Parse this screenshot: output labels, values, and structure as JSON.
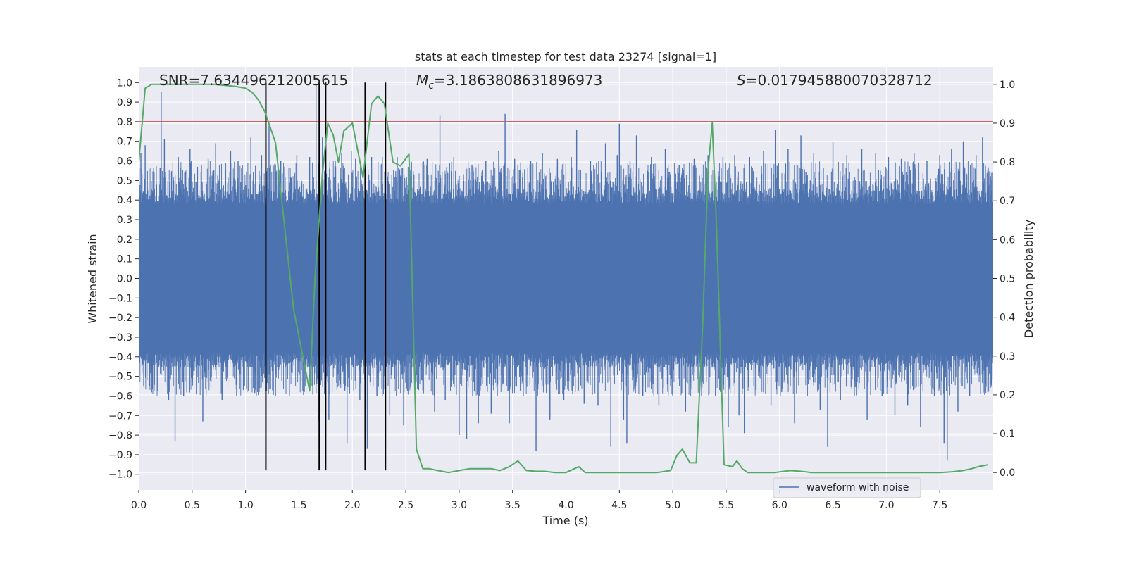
{
  "chart_data": {
    "type": "line",
    "title": "stats at each timestep for test data 23274 [signal=1]",
    "xlabel": "Time (s)",
    "ylabel_left": "Whitened strain",
    "ylabel_right": "Detection probability",
    "xlim": [
      0.0,
      8.0
    ],
    "ylim_left": [
      -1.08,
      1.08
    ],
    "ylim_right": [
      -0.045,
      1.045
    ],
    "x_ticks": [
      0.0,
      0.5,
      1.0,
      1.5,
      2.0,
      2.5,
      3.0,
      3.5,
      4.0,
      4.5,
      5.0,
      5.5,
      6.0,
      6.5,
      7.0,
      7.5
    ],
    "x_tick_labels": [
      "0.0",
      "0.5",
      "1.0",
      "1.5",
      "2.0",
      "2.5",
      "3.0",
      "3.5",
      "4.0",
      "4.5",
      "5.0",
      "5.5",
      "6.0",
      "6.5",
      "7.0",
      "7.5"
    ],
    "y_left_ticks": [
      -1.0,
      -0.9,
      -0.8,
      -0.7,
      -0.6,
      -0.5,
      -0.4,
      -0.3,
      -0.2,
      -0.1,
      0.0,
      0.1,
      0.2,
      0.3,
      0.4,
      0.5,
      0.6,
      0.7,
      0.8,
      0.9,
      1.0
    ],
    "y_left_tick_labels": [
      "−1.0",
      "−0.9",
      "−0.8",
      "−0.7",
      "−0.6",
      "−0.5",
      "−0.4",
      "−0.3",
      "−0.2",
      "−0.1",
      "0.0",
      "0.1",
      "0.2",
      "0.3",
      "0.4",
      "0.5",
      "0.6",
      "0.7",
      "0.8",
      "0.9",
      "1.0"
    ],
    "y_right_ticks": [
      0.0,
      0.1,
      0.2,
      0.3,
      0.4,
      0.5,
      0.6,
      0.7,
      0.8,
      0.9,
      1.0
    ],
    "y_right_tick_labels": [
      "0.0",
      "0.1",
      "0.2",
      "0.3",
      "0.4",
      "0.5",
      "0.6",
      "0.7",
      "0.8",
      "0.9",
      "1.0"
    ],
    "annotations": {
      "snr": "SNR=7.634496212005615",
      "mc_symbol": "M",
      "mc_sub": "c",
      "mc_value": "=3.1863808631896973",
      "s_symbol": "S",
      "s_value": "=0.017945880070328712"
    },
    "threshold": {
      "value": 0.8,
      "axis": "left",
      "color": "#c44e52"
    },
    "vertical_lines": {
      "x": [
        1.19,
        1.69,
        1.75,
        2.12,
        2.31
      ],
      "y_range": [
        -0.98,
        1.0
      ],
      "color": "#000000"
    },
    "series": [
      {
        "name": "waveform with noise",
        "axis": "left",
        "color": "#4c72b0",
        "style": "dense noise trace",
        "envelope": {
          "core_amplitude": 0.38,
          "typical_peak": 0.6
        },
        "spikes": [
          [
            0.02,
            0.64
          ],
          [
            0.06,
            0.68
          ],
          [
            0.1,
            -0.55
          ],
          [
            0.13,
            0.44
          ],
          [
            0.21,
            0.95
          ],
          [
            0.24,
            0.71
          ],
          [
            0.28,
            -0.62
          ],
          [
            0.34,
            -0.83
          ],
          [
            0.37,
            0.62
          ],
          [
            0.42,
            -0.6
          ],
          [
            0.48,
            0.66
          ],
          [
            0.55,
            0.57
          ],
          [
            0.6,
            -0.73
          ],
          [
            0.65,
            0.61
          ],
          [
            0.72,
            0.69
          ],
          [
            0.78,
            -0.62
          ],
          [
            0.86,
            0.65
          ],
          [
            0.93,
            0.6
          ],
          [
            0.98,
            -0.57
          ],
          [
            1.05,
            0.72
          ],
          [
            1.1,
            -0.6
          ],
          [
            1.15,
            0.63
          ],
          [
            1.22,
            0.78
          ],
          [
            1.28,
            -0.6
          ],
          [
            1.33,
            0.6
          ],
          [
            1.41,
            -0.6
          ],
          [
            1.48,
            0.63
          ],
          [
            1.55,
            -0.58
          ],
          [
            1.6,
            0.62
          ],
          [
            1.66,
            0.99
          ],
          [
            1.68,
            -0.73
          ],
          [
            1.72,
            0.72
          ],
          [
            1.78,
            -0.72
          ],
          [
            1.84,
            0.6
          ],
          [
            1.9,
            0.64
          ],
          [
            1.95,
            -0.84
          ],
          [
            1.99,
            0.65
          ],
          [
            2.03,
            0.61
          ],
          [
            2.07,
            -0.62
          ],
          [
            2.14,
            -0.87
          ],
          [
            2.18,
            0.62
          ],
          [
            2.23,
            -0.6
          ],
          [
            2.28,
            0.62
          ],
          [
            2.35,
            -0.7
          ],
          [
            2.42,
            0.62
          ],
          [
            2.48,
            -0.75
          ],
          [
            2.55,
            0.6
          ],
          [
            2.62,
            -0.57
          ],
          [
            2.7,
            0.61
          ],
          [
            2.77,
            -0.68
          ],
          [
            2.82,
            0.83
          ],
          [
            2.87,
            -0.62
          ],
          [
            2.95,
            0.62
          ],
          [
            3.0,
            -0.8
          ],
          [
            3.07,
            -0.82
          ],
          [
            3.12,
            0.58
          ],
          [
            3.18,
            -0.74
          ],
          [
            3.25,
            0.6
          ],
          [
            3.3,
            -0.69
          ],
          [
            3.37,
            0.65
          ],
          [
            3.43,
            0.84
          ],
          [
            3.47,
            -0.74
          ],
          [
            3.52,
            0.61
          ],
          [
            3.6,
            -0.6
          ],
          [
            3.67,
            0.6
          ],
          [
            3.72,
            -0.88
          ],
          [
            3.78,
            0.64
          ],
          [
            3.85,
            -0.72
          ],
          [
            3.92,
            0.61
          ],
          [
            3.98,
            -0.62
          ],
          [
            4.05,
            0.62
          ],
          [
            4.1,
            0.76
          ],
          [
            4.17,
            -0.64
          ],
          [
            4.23,
            0.6
          ],
          [
            4.3,
            -0.65
          ],
          [
            4.37,
            0.69
          ],
          [
            4.42,
            -0.86
          ],
          [
            4.48,
            0.63
          ],
          [
            4.5,
            0.79
          ],
          [
            4.54,
            -0.72
          ],
          [
            4.57,
            -0.84
          ],
          [
            4.6,
            0.6
          ],
          [
            4.66,
            0.73
          ],
          [
            4.72,
            -0.6
          ],
          [
            4.8,
            0.62
          ],
          [
            4.87,
            -0.65
          ],
          [
            4.93,
            0.66
          ],
          [
            5.0,
            -0.6
          ],
          [
            5.06,
            0.58
          ],
          [
            5.12,
            -0.68
          ],
          [
            5.2,
            0.61
          ],
          [
            5.27,
            -0.6
          ],
          [
            5.33,
            0.63
          ],
          [
            5.4,
            -0.6
          ],
          [
            5.47,
            0.62
          ],
          [
            5.52,
            -0.76
          ],
          [
            5.58,
            0.63
          ],
          [
            5.62,
            -0.7
          ],
          [
            5.67,
            -0.79
          ],
          [
            5.72,
            0.62
          ],
          [
            5.78,
            -0.57
          ],
          [
            5.85,
            0.65
          ],
          [
            5.92,
            -0.65
          ],
          [
            5.96,
            0.76
          ],
          [
            6.02,
            -0.58
          ],
          [
            6.08,
            0.66
          ],
          [
            6.14,
            -0.74
          ],
          [
            6.2,
            0.73
          ],
          [
            6.26,
            -0.6
          ],
          [
            6.32,
            0.64
          ],
          [
            6.38,
            -0.67
          ],
          [
            6.45,
            -0.86
          ],
          [
            6.5,
            0.7
          ],
          [
            6.57,
            -0.62
          ],
          [
            6.63,
            0.63
          ],
          [
            6.7,
            -0.6
          ],
          [
            6.77,
            0.66
          ],
          [
            6.82,
            -0.72
          ],
          [
            6.9,
            0.64
          ],
          [
            6.96,
            -0.6
          ],
          [
            7.02,
            0.62
          ],
          [
            7.08,
            -0.7
          ],
          [
            7.14,
            0.61
          ],
          [
            7.2,
            -0.65
          ],
          [
            7.26,
            0.64
          ],
          [
            7.32,
            -0.76
          ],
          [
            7.38,
            0.6
          ],
          [
            7.45,
            -0.6
          ],
          [
            7.5,
            0.63
          ],
          [
            7.54,
            -0.84
          ],
          [
            7.57,
            -0.93
          ],
          [
            7.61,
            0.66
          ],
          [
            7.67,
            -0.68
          ],
          [
            7.72,
            0.7
          ],
          [
            7.78,
            -0.6
          ],
          [
            7.84,
            0.63
          ],
          [
            7.9,
            0.72
          ],
          [
            7.95,
            -0.58
          ]
        ]
      },
      {
        "name": "",
        "axis": "right",
        "color": "#55a868",
        "x": [
          0.0,
          0.06,
          0.12,
          0.3,
          0.5,
          0.7,
          0.9,
          1.0,
          1.06,
          1.12,
          1.18,
          1.28,
          1.45,
          1.6,
          1.65,
          1.72,
          1.77,
          1.82,
          1.87,
          1.92,
          2.0,
          2.1,
          2.18,
          2.24,
          2.3,
          2.38,
          2.45,
          2.53,
          2.6,
          2.66,
          2.72,
          2.8,
          2.9,
          3.0,
          3.1,
          3.2,
          3.3,
          3.38,
          3.47,
          3.55,
          3.63,
          3.72,
          3.8,
          3.9,
          4.0,
          4.08,
          4.12,
          4.18,
          4.3,
          4.5,
          4.7,
          4.85,
          4.98,
          5.04,
          5.09,
          5.16,
          5.22,
          5.28,
          5.33,
          5.37,
          5.41,
          5.48,
          5.56,
          5.6,
          5.65,
          5.7,
          5.8,
          5.95,
          6.1,
          6.2,
          6.3,
          6.5,
          6.7,
          6.9,
          7.1,
          7.3,
          7.5,
          7.62,
          7.72,
          7.8,
          7.86,
          7.95
        ],
        "y": [
          0.8,
          0.99,
          1.0,
          1.0,
          1.0,
          1.0,
          0.995,
          0.99,
          0.98,
          0.96,
          0.93,
          0.85,
          0.42,
          0.21,
          0.5,
          0.77,
          0.9,
          0.87,
          0.8,
          0.88,
          0.9,
          0.76,
          0.95,
          0.97,
          0.95,
          0.8,
          0.79,
          0.82,
          0.06,
          0.01,
          0.01,
          0.005,
          0.0,
          0.005,
          0.01,
          0.01,
          0.01,
          0.005,
          0.015,
          0.03,
          0.005,
          0.003,
          0.003,
          0.0,
          0.0,
          0.01,
          0.015,
          0.0,
          0.0,
          0.0,
          0.0,
          0.0,
          0.005,
          0.045,
          0.06,
          0.025,
          0.025,
          0.38,
          0.78,
          0.9,
          0.63,
          0.02,
          0.015,
          0.03,
          0.01,
          0.0,
          0.0,
          0.0,
          0.005,
          0.003,
          0.0,
          0.0,
          0.0,
          0.0,
          0.0,
          0.0,
          0.0,
          0.002,
          0.005,
          0.01,
          0.015,
          0.02
        ]
      }
    ],
    "legend": {
      "entries": [
        "waveform with noise"
      ],
      "placement": "bottom-right"
    },
    "grid": true,
    "colors": {
      "axes_bg": "#eaeaf2",
      "grid": "#ffffff",
      "text": "#262626"
    }
  }
}
